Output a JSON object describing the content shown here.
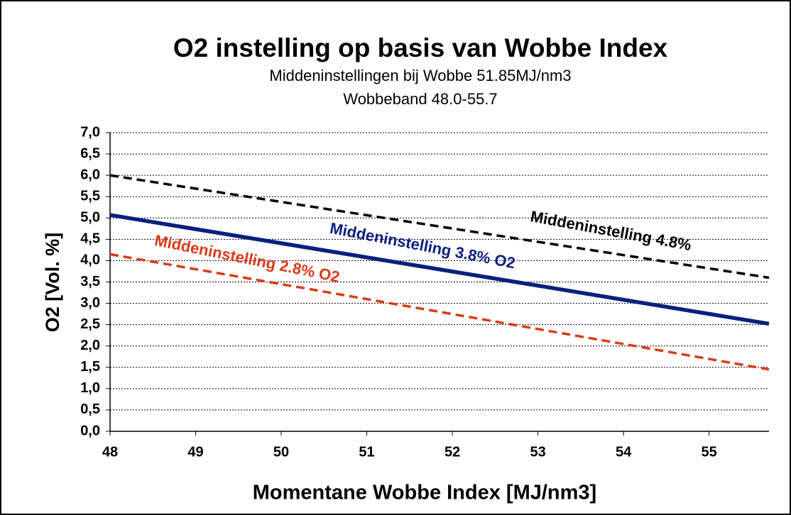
{
  "chart_data": {
    "type": "line",
    "title": "O2 instelling op basis van Wobbe Index",
    "subtitle": [
      "Middeninstellingen bij Wobbe 51.85MJ/nm3",
      "Wobbeband 48.0-55.7"
    ],
    "x_label": "Momentane Wobbe Index [MJ/nm3]",
    "y_label": "O2 [Vol. %]",
    "x": [
      48,
      55.7
    ],
    "series": [
      {
        "name": "Middeninstelling 4.8%",
        "color": "#000000",
        "dash": true,
        "values": [
          6.0,
          3.6
        ]
      },
      {
        "name": "Middeninstelling 3.8% O2",
        "color": "#0b1f7d",
        "dash": false,
        "values": [
          5.07,
          2.52
        ]
      },
      {
        "name": "Middeninstelling 2.8% O2",
        "color": "#d93a1a",
        "dash": true,
        "values": [
          4.15,
          1.45
        ]
      }
    ],
    "xlim": [
      48,
      55.7
    ],
    "xticks": [
      48,
      49,
      50,
      51,
      52,
      53,
      54,
      55
    ],
    "ylim": [
      0,
      7
    ],
    "yticks": [
      {
        "value": 0,
        "label": "0,0"
      },
      {
        "value": 0.5,
        "label": "0,5"
      },
      {
        "value": 1,
        "label": "1,0"
      },
      {
        "value": 1.5,
        "label": "1,5"
      },
      {
        "value": 2,
        "label": "2,0"
      },
      {
        "value": 2.5,
        "label": "2,5"
      },
      {
        "value": 3,
        "label": "3,0"
      },
      {
        "value": 3.5,
        "label": "3,5"
      },
      {
        "value": 4,
        "label": "4,0"
      },
      {
        "value": 4.5,
        "label": "4,5"
      },
      {
        "value": 5,
        "label": "5,0"
      },
      {
        "value": 5.5,
        "label": "5,5"
      },
      {
        "value": 6,
        "label": "6,0"
      },
      {
        "value": 6.5,
        "label": "6,5"
      },
      {
        "value": 7,
        "label": "7,0"
      }
    ],
    "grid": true
  }
}
